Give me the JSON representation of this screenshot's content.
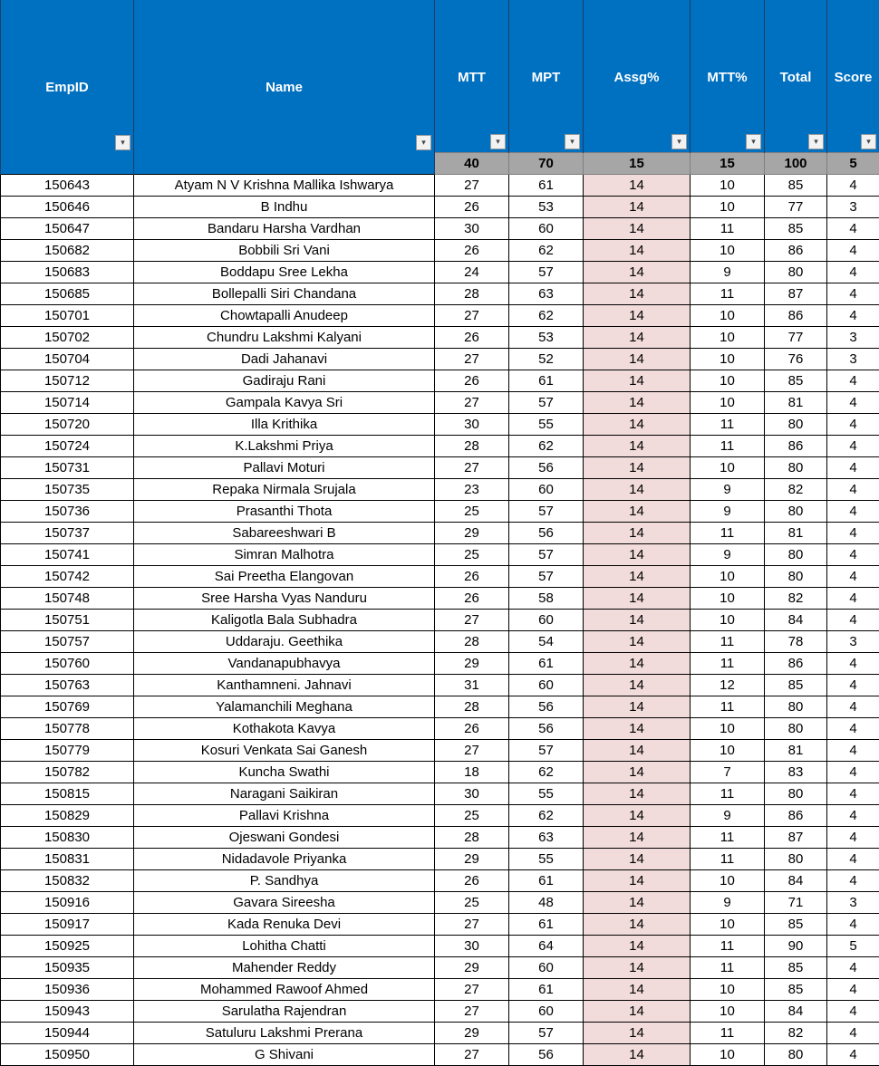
{
  "headers": [
    {
      "key": "empid",
      "label": "EmpID",
      "pos": "low"
    },
    {
      "key": "name",
      "label": "Name",
      "pos": "low"
    },
    {
      "key": "mtt",
      "label": "MTT",
      "pos": "high"
    },
    {
      "key": "mpt",
      "label": "MPT",
      "pos": "high"
    },
    {
      "key": "assg",
      "label": "Assg%",
      "pos": "high"
    },
    {
      "key": "mttpct",
      "label": "MTT%",
      "pos": "high"
    },
    {
      "key": "total",
      "label": "Total",
      "pos": "high"
    },
    {
      "key": "score",
      "label": "Score",
      "pos": "high"
    }
  ],
  "filter_glyph": "▾",
  "max_marks": [
    "",
    "",
    "40",
    "70",
    "15",
    "15",
    "100",
    "5"
  ],
  "rows": [
    [
      "150643",
      "Atyam N V Krishna Mallika Ishwarya",
      "27",
      "61",
      "14",
      "10",
      "85",
      "4"
    ],
    [
      "150646",
      "B Indhu",
      "26",
      "53",
      "14",
      "10",
      "77",
      "3"
    ],
    [
      "150647",
      "Bandaru Harsha Vardhan",
      "30",
      "60",
      "14",
      "11",
      "85",
      "4"
    ],
    [
      "150682",
      "Bobbili Sri Vani",
      "26",
      "62",
      "14",
      "10",
      "86",
      "4"
    ],
    [
      "150683",
      "Boddapu Sree Lekha",
      "24",
      "57",
      "14",
      "9",
      "80",
      "4"
    ],
    [
      "150685",
      "Bollepalli Siri Chandana",
      "28",
      "63",
      "14",
      "11",
      "87",
      "4"
    ],
    [
      "150701",
      "Chowtapalli Anudeep",
      "27",
      "62",
      "14",
      "10",
      "86",
      "4"
    ],
    [
      "150702",
      "Chundru Lakshmi Kalyani",
      "26",
      "53",
      "14",
      "10",
      "77",
      "3"
    ],
    [
      "150704",
      "Dadi Jahanavi",
      "27",
      "52",
      "14",
      "10",
      "76",
      "3"
    ],
    [
      "150712",
      "Gadiraju Rani",
      "26",
      "61",
      "14",
      "10",
      "85",
      "4"
    ],
    [
      "150714",
      "Gampala Kavya Sri",
      "27",
      "57",
      "14",
      "10",
      "81",
      "4"
    ],
    [
      "150720",
      "Illa Krithika",
      "30",
      "55",
      "14",
      "11",
      "80",
      "4"
    ],
    [
      "150724",
      "K.Lakshmi Priya",
      "28",
      "62",
      "14",
      "11",
      "86",
      "4"
    ],
    [
      "150731",
      "Pallavi Moturi",
      "27",
      "56",
      "14",
      "10",
      "80",
      "4"
    ],
    [
      "150735",
      "Repaka Nirmala Srujala",
      "23",
      "60",
      "14",
      "9",
      "82",
      "4"
    ],
    [
      "150736",
      "Prasanthi Thota",
      "25",
      "57",
      "14",
      "9",
      "80",
      "4"
    ],
    [
      "150737",
      "Sabareeshwari B",
      "29",
      "56",
      "14",
      "11",
      "81",
      "4"
    ],
    [
      "150741",
      "Simran Malhotra",
      "25",
      "57",
      "14",
      "9",
      "80",
      "4"
    ],
    [
      "150742",
      "Sai Preetha Elangovan",
      "26",
      "57",
      "14",
      "10",
      "80",
      "4"
    ],
    [
      "150748",
      "Sree Harsha Vyas Nanduru",
      "26",
      "58",
      "14",
      "10",
      "82",
      "4"
    ],
    [
      "150751",
      "Kaligotla Bala Subhadra",
      "27",
      "60",
      "14",
      "10",
      "84",
      "4"
    ],
    [
      "150757",
      "Uddaraju. Geethika",
      "28",
      "54",
      "14",
      "11",
      "78",
      "3"
    ],
    [
      "150760",
      "Vandanapubhavya",
      "29",
      "61",
      "14",
      "11",
      "86",
      "4"
    ],
    [
      "150763",
      "Kanthamneni. Jahnavi",
      "31",
      "60",
      "14",
      "12",
      "85",
      "4"
    ],
    [
      "150769",
      "Yalamanchili Meghana",
      "28",
      "56",
      "14",
      "11",
      "80",
      "4"
    ],
    [
      "150778",
      "Kothakota Kavya",
      "26",
      "56",
      "14",
      "10",
      "80",
      "4"
    ],
    [
      "150779",
      "Kosuri Venkata Sai Ganesh",
      "27",
      "57",
      "14",
      "10",
      "81",
      "4"
    ],
    [
      "150782",
      "Kuncha Swathi",
      "18",
      "62",
      "14",
      "7",
      "83",
      "4"
    ],
    [
      "150815",
      "Naragani Saikiran",
      "30",
      "55",
      "14",
      "11",
      "80",
      "4"
    ],
    [
      "150829",
      "Pallavi Krishna",
      "25",
      "62",
      "14",
      "9",
      "86",
      "4"
    ],
    [
      "150830",
      "Ojeswani Gondesi",
      "28",
      "63",
      "14",
      "11",
      "87",
      "4"
    ],
    [
      "150831",
      "Nidadavole Priyanka",
      "29",
      "55",
      "14",
      "11",
      "80",
      "4"
    ],
    [
      "150832",
      "P. Sandhya",
      "26",
      "61",
      "14",
      "10",
      "84",
      "4"
    ],
    [
      "150916",
      "Gavara Sireesha",
      "25",
      "48",
      "14",
      "9",
      "71",
      "3"
    ],
    [
      "150917",
      "Kada Renuka Devi",
      "27",
      "61",
      "14",
      "10",
      "85",
      "4"
    ],
    [
      "150925",
      "Lohitha Chatti",
      "30",
      "64",
      "14",
      "11",
      "90",
      "5"
    ],
    [
      "150935",
      "Mahender Reddy",
      "29",
      "60",
      "14",
      "11",
      "85",
      "4"
    ],
    [
      "150936",
      "Mohammed Rawoof Ahmed",
      "27",
      "61",
      "14",
      "10",
      "85",
      "4"
    ],
    [
      "150943",
      "Sarulatha Rajendran",
      "27",
      "60",
      "14",
      "10",
      "84",
      "4"
    ],
    [
      "150944",
      "Satuluru Lakshmi Prerana",
      "29",
      "57",
      "14",
      "11",
      "82",
      "4"
    ],
    [
      "150950",
      "G Shivani",
      "27",
      "56",
      "14",
      "10",
      "80",
      "4"
    ]
  ],
  "colors": {
    "header_bg": "#0070c0",
    "max_row_bg": "#a6a6a6",
    "assg_cell_bg": "#f2dcdb"
  }
}
